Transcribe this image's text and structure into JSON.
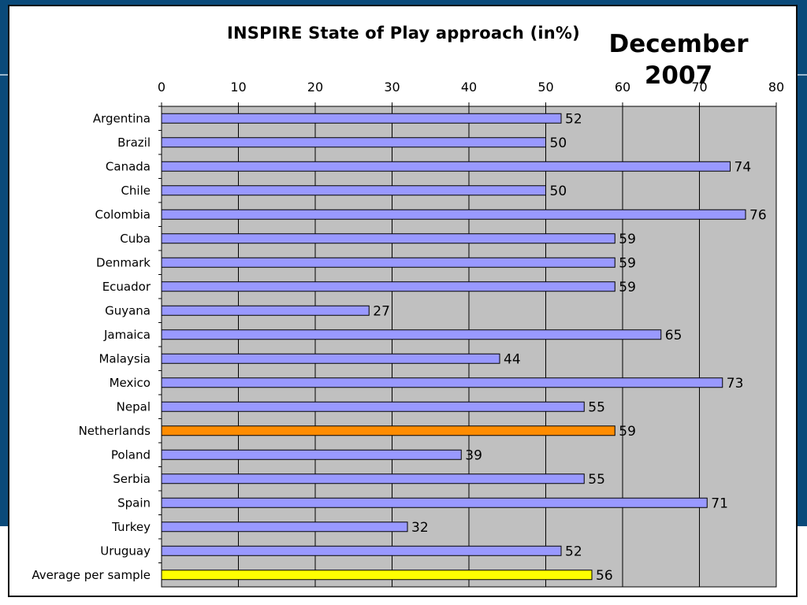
{
  "chart_data": {
    "type": "bar",
    "orientation": "horizontal",
    "title": "INSPIRE State of Play approach (in%)",
    "subtitle": "December 2007",
    "xlim": [
      0,
      80
    ],
    "xticks": [
      0,
      10,
      20,
      30,
      40,
      50,
      60,
      70,
      80
    ],
    "x_axis_position": "top",
    "grid": true,
    "categories": [
      "Argentina",
      "Brazil",
      "Canada",
      "Chile",
      "Colombia",
      "Cuba",
      "Denmark",
      "Ecuador",
      "Guyana",
      "Jamaica",
      "Malaysia",
      "Mexico",
      "Nepal",
      "Netherlands",
      "Poland",
      "Serbia",
      "Spain",
      "Turkey",
      "Uruguay",
      "Average per sample"
    ],
    "values": [
      52,
      50,
      74,
      50,
      76,
      59,
      59,
      59,
      27,
      65,
      44,
      73,
      55,
      59,
      39,
      55,
      71,
      32,
      52,
      56
    ],
    "colors": {
      "default_bar": "#9999ff",
      "highlight_netherlands": "#ff8c00",
      "highlight_average": "#ffff00",
      "plot_background": "#c0c0c0",
      "gridline": "#000000"
    },
    "bar_colors": [
      "#9999ff",
      "#9999ff",
      "#9999ff",
      "#9999ff",
      "#9999ff",
      "#9999ff",
      "#9999ff",
      "#9999ff",
      "#9999ff",
      "#9999ff",
      "#9999ff",
      "#9999ff",
      "#9999ff",
      "#ff8c00",
      "#9999ff",
      "#9999ff",
      "#9999ff",
      "#9999ff",
      "#9999ff",
      "#ffff00"
    ]
  }
}
